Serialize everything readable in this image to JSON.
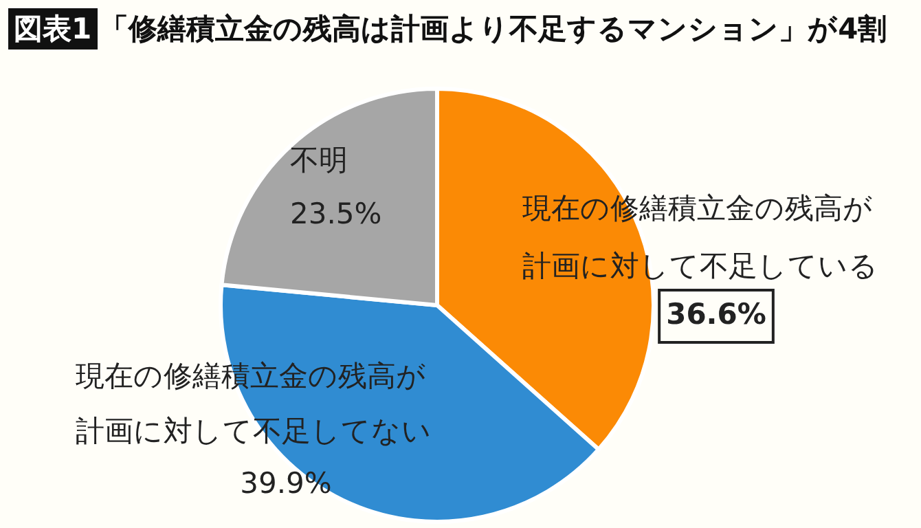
{
  "chart_data": {
    "type": "pie",
    "title": "「修繕積立金の残高は計画より不足するマンション」が4割",
    "annotations": [
      "図表1"
    ],
    "categories": [
      "現在の修繕積立金の残高が計画に対して不足している",
      "現在の修繕積立金の残高が計画に対して不足してない",
      "不明"
    ],
    "values": [
      36.6,
      39.9,
      23.5
    ],
    "value_labels": [
      "36.6%",
      "39.9%",
      "23.5%"
    ],
    "colors": [
      "#fb8a05",
      "#308cd2",
      "#a6a6a6"
    ]
  }
}
